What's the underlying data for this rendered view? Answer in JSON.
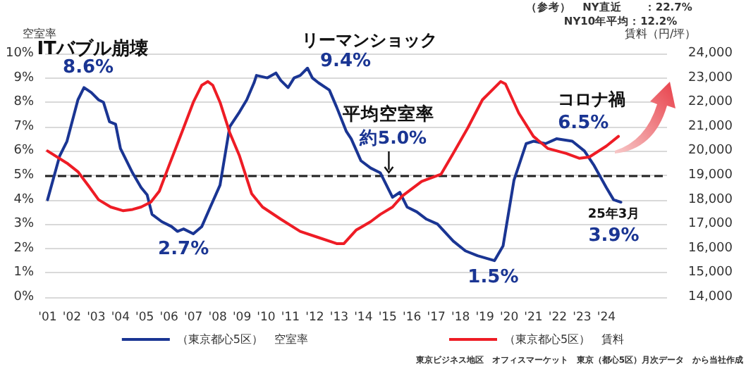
{
  "chart_data": {
    "type": "line",
    "ylabel": "空室率",
    "y2label": "賃料（円/坪）",
    "xlim": [
      0.9,
      26.5
    ],
    "xticks": [
      {
        "value": 1,
        "label": "'01"
      },
      {
        "value": 2,
        "label": "'02"
      },
      {
        "value": 3,
        "label": "'03"
      },
      {
        "value": 4,
        "label": "'04"
      },
      {
        "value": 5,
        "label": "'05"
      },
      {
        "value": 6,
        "label": "'06"
      },
      {
        "value": 7,
        "label": "'07"
      },
      {
        "value": 8,
        "label": "'08"
      },
      {
        "value": 9,
        "label": "'09"
      },
      {
        "value": 10,
        "label": "'10"
      },
      {
        "value": 11,
        "label": "'11"
      },
      {
        "value": 12,
        "label": "'12"
      },
      {
        "value": 13,
        "label": "'13"
      },
      {
        "value": 14,
        "label": "'14"
      },
      {
        "value": 15,
        "label": "'15"
      },
      {
        "value": 16,
        "label": "'16"
      },
      {
        "value": 17,
        "label": "'17"
      },
      {
        "value": 18,
        "label": "'18"
      },
      {
        "value": 19,
        "label": "'19"
      },
      {
        "value": 20,
        "label": "'20"
      },
      {
        "value": 21,
        "label": "'21"
      },
      {
        "value": 22,
        "label": "'22"
      },
      {
        "value": 23,
        "label": "'23"
      },
      {
        "value": 24,
        "label": "'24"
      }
    ],
    "ylim": [
      0,
      10
    ],
    "yticks": [
      {
        "value": 0,
        "label": "0%"
      },
      {
        "value": 1,
        "label": "1%"
      },
      {
        "value": 2,
        "label": "2%"
      },
      {
        "value": 3,
        "label": "3%"
      },
      {
        "value": 4,
        "label": "4%"
      },
      {
        "value": 5,
        "label": "5%"
      },
      {
        "value": 6,
        "label": "6%"
      },
      {
        "value": 7,
        "label": "7%"
      },
      {
        "value": 8,
        "label": "8%"
      },
      {
        "value": 9,
        "label": "9%"
      },
      {
        "value": 10,
        "label": "10%"
      }
    ],
    "y2lim": [
      14000,
      24000
    ],
    "y2ticks": [
      {
        "value": 14000,
        "label": "14,000"
      },
      {
        "value": 15000,
        "label": "15,000"
      },
      {
        "value": 16000,
        "label": "16,000"
      },
      {
        "value": 17000,
        "label": "17,000"
      },
      {
        "value": 18000,
        "label": "18,000"
      },
      {
        "value": 19000,
        "label": "19,000"
      },
      {
        "value": 20000,
        "label": "20,000"
      },
      {
        "value": 21000,
        "label": "21,000"
      },
      {
        "value": 22000,
        "label": "22,000"
      },
      {
        "value": 23000,
        "label": "23,000"
      },
      {
        "value": 24000,
        "label": "24,000"
      }
    ],
    "grid": "y",
    "legend": "bottom",
    "series": [
      {
        "name": "（東京都心5区）　空室率",
        "color": "#1a3593",
        "x": [
          1.0,
          1.5,
          1.8,
          2.25,
          2.5,
          2.8,
          3.1,
          3.3,
          3.55,
          3.8,
          4.0,
          4.5,
          4.85,
          5.1,
          5.3,
          5.7,
          6.1,
          6.35,
          6.6,
          7.0,
          7.35,
          7.7,
          8.1,
          8.5,
          8.9,
          9.2,
          9.5,
          9.6,
          10.05,
          10.4,
          10.6,
          10.9,
          11.15,
          11.4,
          11.7,
          11.9,
          12.15,
          12.6,
          12.9,
          13.3,
          13.5,
          13.9,
          14.3,
          14.7,
          15.2,
          15.5,
          15.8,
          16.2,
          16.6,
          17.05,
          17.7,
          18.2,
          18.7,
          19.4,
          19.75,
          20.2,
          20.7,
          21.0,
          21.5,
          21.95,
          22.6,
          23.1,
          23.5,
          24.0,
          24.3,
          24.6
        ],
        "values": [
          4.0,
          5.8,
          6.4,
          8.1,
          8.6,
          8.4,
          8.1,
          8.0,
          7.2,
          7.1,
          6.1,
          5.1,
          4.5,
          4.2,
          3.4,
          3.1,
          2.9,
          2.7,
          2.8,
          2.6,
          2.9,
          3.7,
          4.6,
          7.0,
          7.6,
          8.1,
          8.8,
          9.1,
          9.0,
          9.2,
          8.9,
          8.6,
          9.0,
          9.1,
          9.4,
          9.0,
          8.8,
          8.5,
          7.8,
          6.8,
          6.5,
          5.6,
          5.3,
          5.1,
          4.1,
          4.3,
          3.7,
          3.5,
          3.2,
          3.0,
          2.3,
          1.9,
          1.7,
          1.5,
          2.1,
          4.8,
          6.3,
          6.4,
          6.3,
          6.5,
          6.4,
          6.0,
          5.4,
          4.5,
          4.0,
          3.9
        ]
      },
      {
        "name": "（東京都心5区）　賃料",
        "color": "#ee1c25",
        "axis": "y2",
        "x": [
          1.0,
          1.8,
          2.25,
          2.7,
          3.1,
          3.6,
          4.1,
          4.5,
          4.85,
          5.25,
          5.6,
          6.0,
          6.6,
          7.0,
          7.35,
          7.6,
          7.8,
          8.1,
          8.5,
          8.9,
          9.4,
          9.85,
          10.6,
          11.4,
          12.15,
          12.9,
          13.2,
          13.7,
          14.3,
          14.7,
          15.2,
          15.6,
          16.4,
          17.2,
          17.7,
          18.3,
          18.9,
          19.65,
          19.85,
          20.4,
          21.0,
          21.6,
          22.35,
          22.9,
          23.3,
          24.0,
          24.5
        ],
        "values": [
          20000,
          19500,
          19150,
          18550,
          18000,
          17700,
          17550,
          17600,
          17700,
          17900,
          18350,
          19400,
          20950,
          22000,
          22700,
          22850,
          22700,
          22000,
          20750,
          19800,
          18250,
          17700,
          17200,
          16700,
          16450,
          16200,
          16200,
          16750,
          17100,
          17400,
          17700,
          18150,
          18750,
          19050,
          19900,
          20950,
          22100,
          22850,
          22750,
          21550,
          20600,
          20100,
          19900,
          19700,
          19750,
          20200,
          20600
        ]
      }
    ],
    "ref_lines": [
      {
        "axis": "y",
        "value": 5,
        "color": "#222222",
        "line_style": "dashed"
      }
    ],
    "annotations": [
      {
        "text": "ITバブル崩壊",
        "x": 2.5,
        "y": 8.6
      },
      {
        "text": "8.6%",
        "x": 2.5,
        "y": 8.6
      },
      {
        "text": "リーマンショック",
        "x": 11.7,
        "y": 9.4
      },
      {
        "text": "9.4%",
        "x": 11.7,
        "y": 9.4
      },
      {
        "text": "平均空室率",
        "x": 14.7,
        "y": 5.0
      },
      {
        "text": "約5.0%",
        "x": 14.7,
        "y": 5.0
      },
      {
        "text": "2.7%",
        "x": 7.0,
        "y": 2.6
      },
      {
        "text": "1.5%",
        "x": 19.4,
        "y": 1.5
      },
      {
        "text": "コロナ禍",
        "x": 21.95,
        "y": 6.5
      },
      {
        "text": "6.5%",
        "x": 21.95,
        "y": 6.5
      },
      {
        "text": "25年3月",
        "x": 24.6,
        "y": 3.9
      },
      {
        "text": "3.9%",
        "x": 24.6,
        "y": 3.9
      },
      "（参考）　NY直近　　：22.7%",
      "NY10年平均：12.2%",
      "東京ビジネス地区　オフィスマーケット　東京（都心5区）月次データ　から当社作成"
    ]
  }
}
